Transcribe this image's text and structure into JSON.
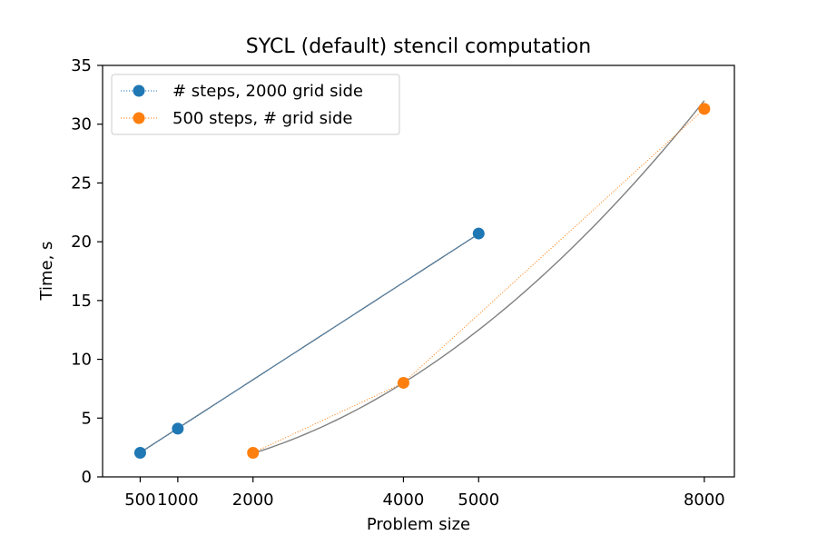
{
  "chart_data": {
    "type": "line",
    "title": "SYCL (default) stencil computation",
    "xlabel": "Problem size",
    "ylabel": "Time, s",
    "xlim": [
      0,
      8400
    ],
    "ylim": [
      0,
      35
    ],
    "xticks": [
      500,
      1000,
      2000,
      4000,
      5000,
      8000
    ],
    "xtick_labels": [
      "500",
      "1000",
      "2000",
      "4000",
      "5000",
      "8000"
    ],
    "yticks": [
      0,
      5,
      10,
      15,
      20,
      25,
      30,
      35
    ],
    "ytick_labels": [
      "0",
      "5",
      "10",
      "15",
      "20",
      "25",
      "30",
      "35"
    ],
    "grid": false,
    "legend_position": "top-left",
    "series": [
      {
        "name": "# steps, 2000 grid side",
        "color": "#1f77b4",
        "linestyle": "dotted",
        "marker": "circle",
        "x": [
          500,
          1000,
          5000
        ],
        "y": [
          2.05,
          4.1,
          20.7
        ]
      },
      {
        "name": "500 steps, # grid side",
        "color": "#ff7f0e",
        "linestyle": "dotted",
        "marker": "circle",
        "x": [
          2000,
          4000,
          8000
        ],
        "y": [
          2.05,
          8.0,
          31.3
        ]
      }
    ],
    "fit_lines": [
      {
        "type": "linear",
        "color": "#708090",
        "x_range": [
          500,
          5000
        ],
        "slope": 0.0041333,
        "intercept": 0.0
      },
      {
        "type": "quadratic",
        "color": "#808080",
        "x_range": [
          2000,
          8000
        ],
        "coef": 5e-07
      }
    ]
  }
}
